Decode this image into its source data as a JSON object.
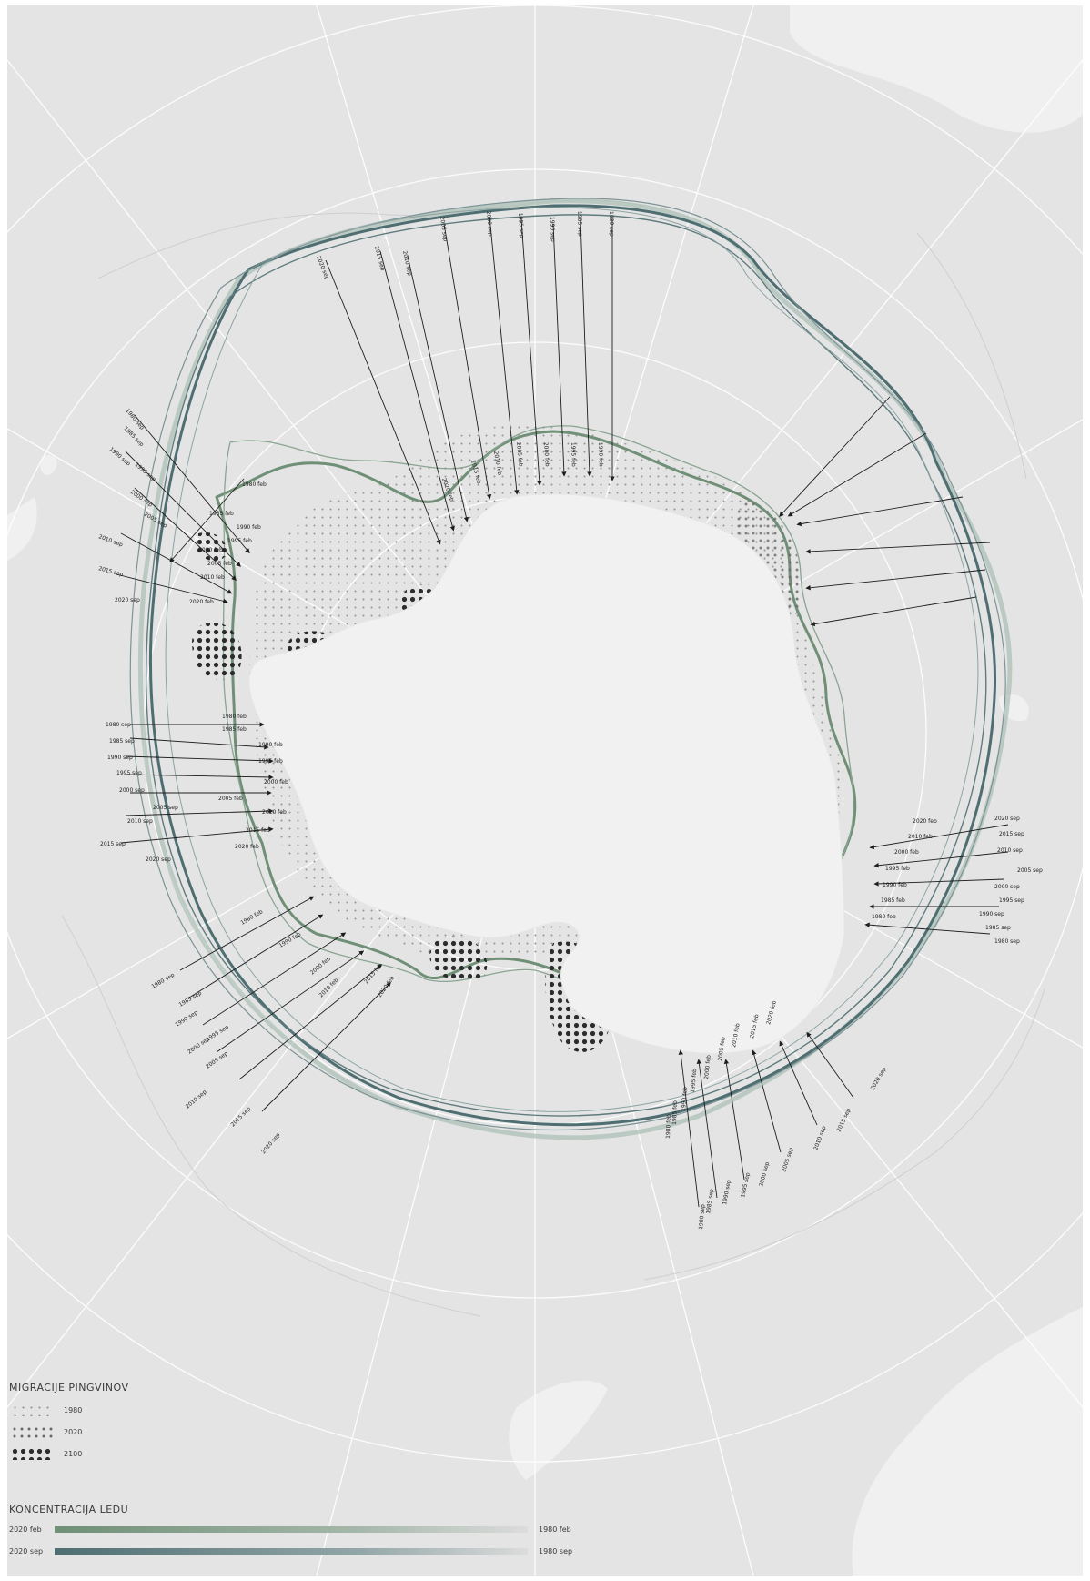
{
  "colors": {
    "background": "#e4e4e4",
    "land": "#f0f0f0",
    "antarctica": "#f1f1f1",
    "graticule": "#ffffff",
    "ice_sep": "#4e6e72",
    "ice_feb": "#6f8f76",
    "ice_light": "#a9bdb5",
    "arrow": "#1e1e1e"
  },
  "legend": {
    "penguins": {
      "title": "MIGRACIJE PINGVINOV",
      "items": [
        {
          "label": "1980",
          "density": "sparse"
        },
        {
          "label": "2020",
          "density": "medium"
        },
        {
          "label": "2100",
          "density": "dense"
        }
      ]
    },
    "ice": {
      "title": "KONCENTRACIJA LEDU",
      "rows": [
        {
          "left": "2020 feb",
          "right": "1980 feb",
          "color": "#6f8f76"
        },
        {
          "left": "2020 sep",
          "right": "1980 sep",
          "color": "#4e6e72"
        }
      ]
    }
  },
  "migration_labels": {
    "top": [
      "2020 sep",
      "2015 sep",
      "2010 sep",
      "2005 sep",
      "2000 sep",
      "1995 sep",
      "1990 sep",
      "1985 sep",
      "1980 sep"
    ],
    "top_inner": [
      "2020 feb",
      "2015 feb",
      "2010 feb",
      "2005 feb",
      "2000 feb",
      "1995 feb",
      "1990 feb"
    ],
    "upper_left": [
      "1980 sep",
      "1985 sep",
      "1990 sep",
      "1995 sep",
      "2000 sep",
      "2005 sep",
      "2010 sep",
      "2015 sep",
      "2020 sep"
    ],
    "upper_left_inner": [
      "1980 feb",
      "1985 feb",
      "1990 feb",
      "1995 feb",
      "2000 feb",
      "2005 feb",
      "2010 feb",
      "2020 feb"
    ],
    "left": [
      "1980 sep",
      "1985 sep",
      "1990 sep",
      "1995 sep",
      "2000 sep",
      "2005 sep",
      "2010 sep",
      "2015 sep",
      "2020 sep"
    ],
    "left_inner": [
      "1980 feb",
      "1985 feb",
      "1990 feb",
      "1995 feb",
      "2000 feb",
      "2005 feb",
      "2010 feb",
      "2015 feb",
      "2020 feb"
    ],
    "right": [
      "2020 sep",
      "2015 sep",
      "2010 sep",
      "2005 sep",
      "2000 sep",
      "1995 sep",
      "1990 sep",
      "1985 sep",
      "1980 sep"
    ],
    "right_inner": [
      "2020 feb",
      "2010 feb",
      "2000 feb",
      "1995 feb",
      "1990 feb",
      "1985 feb",
      "1980 feb"
    ],
    "lower_left": [
      "1980 sep",
      "1985 sep",
      "1990 sep",
      "1995 sep",
      "2000 sep",
      "2005 sep",
      "2010 sep",
      "2015 sep",
      "2020 sep"
    ],
    "lower_left_inner": [
      "1980 feb",
      "1990 feb",
      "2000 feb",
      "2010 feb",
      "2015 feb",
      "2020 feb"
    ],
    "lower_right": [
      "2020 sep",
      "2015 sep",
      "2010 sep",
      "2005 sep",
      "2000 sep",
      "1995 sep",
      "1990 sep",
      "1985 sep",
      "1980 sep"
    ],
    "lower_right_inner": [
      "2020 feb",
      "2015 feb",
      "2010 feb",
      "2005 feb",
      "2000 feb",
      "1995 feb",
      "1990 feb",
      "1985 feb",
      "1980 feb"
    ]
  }
}
